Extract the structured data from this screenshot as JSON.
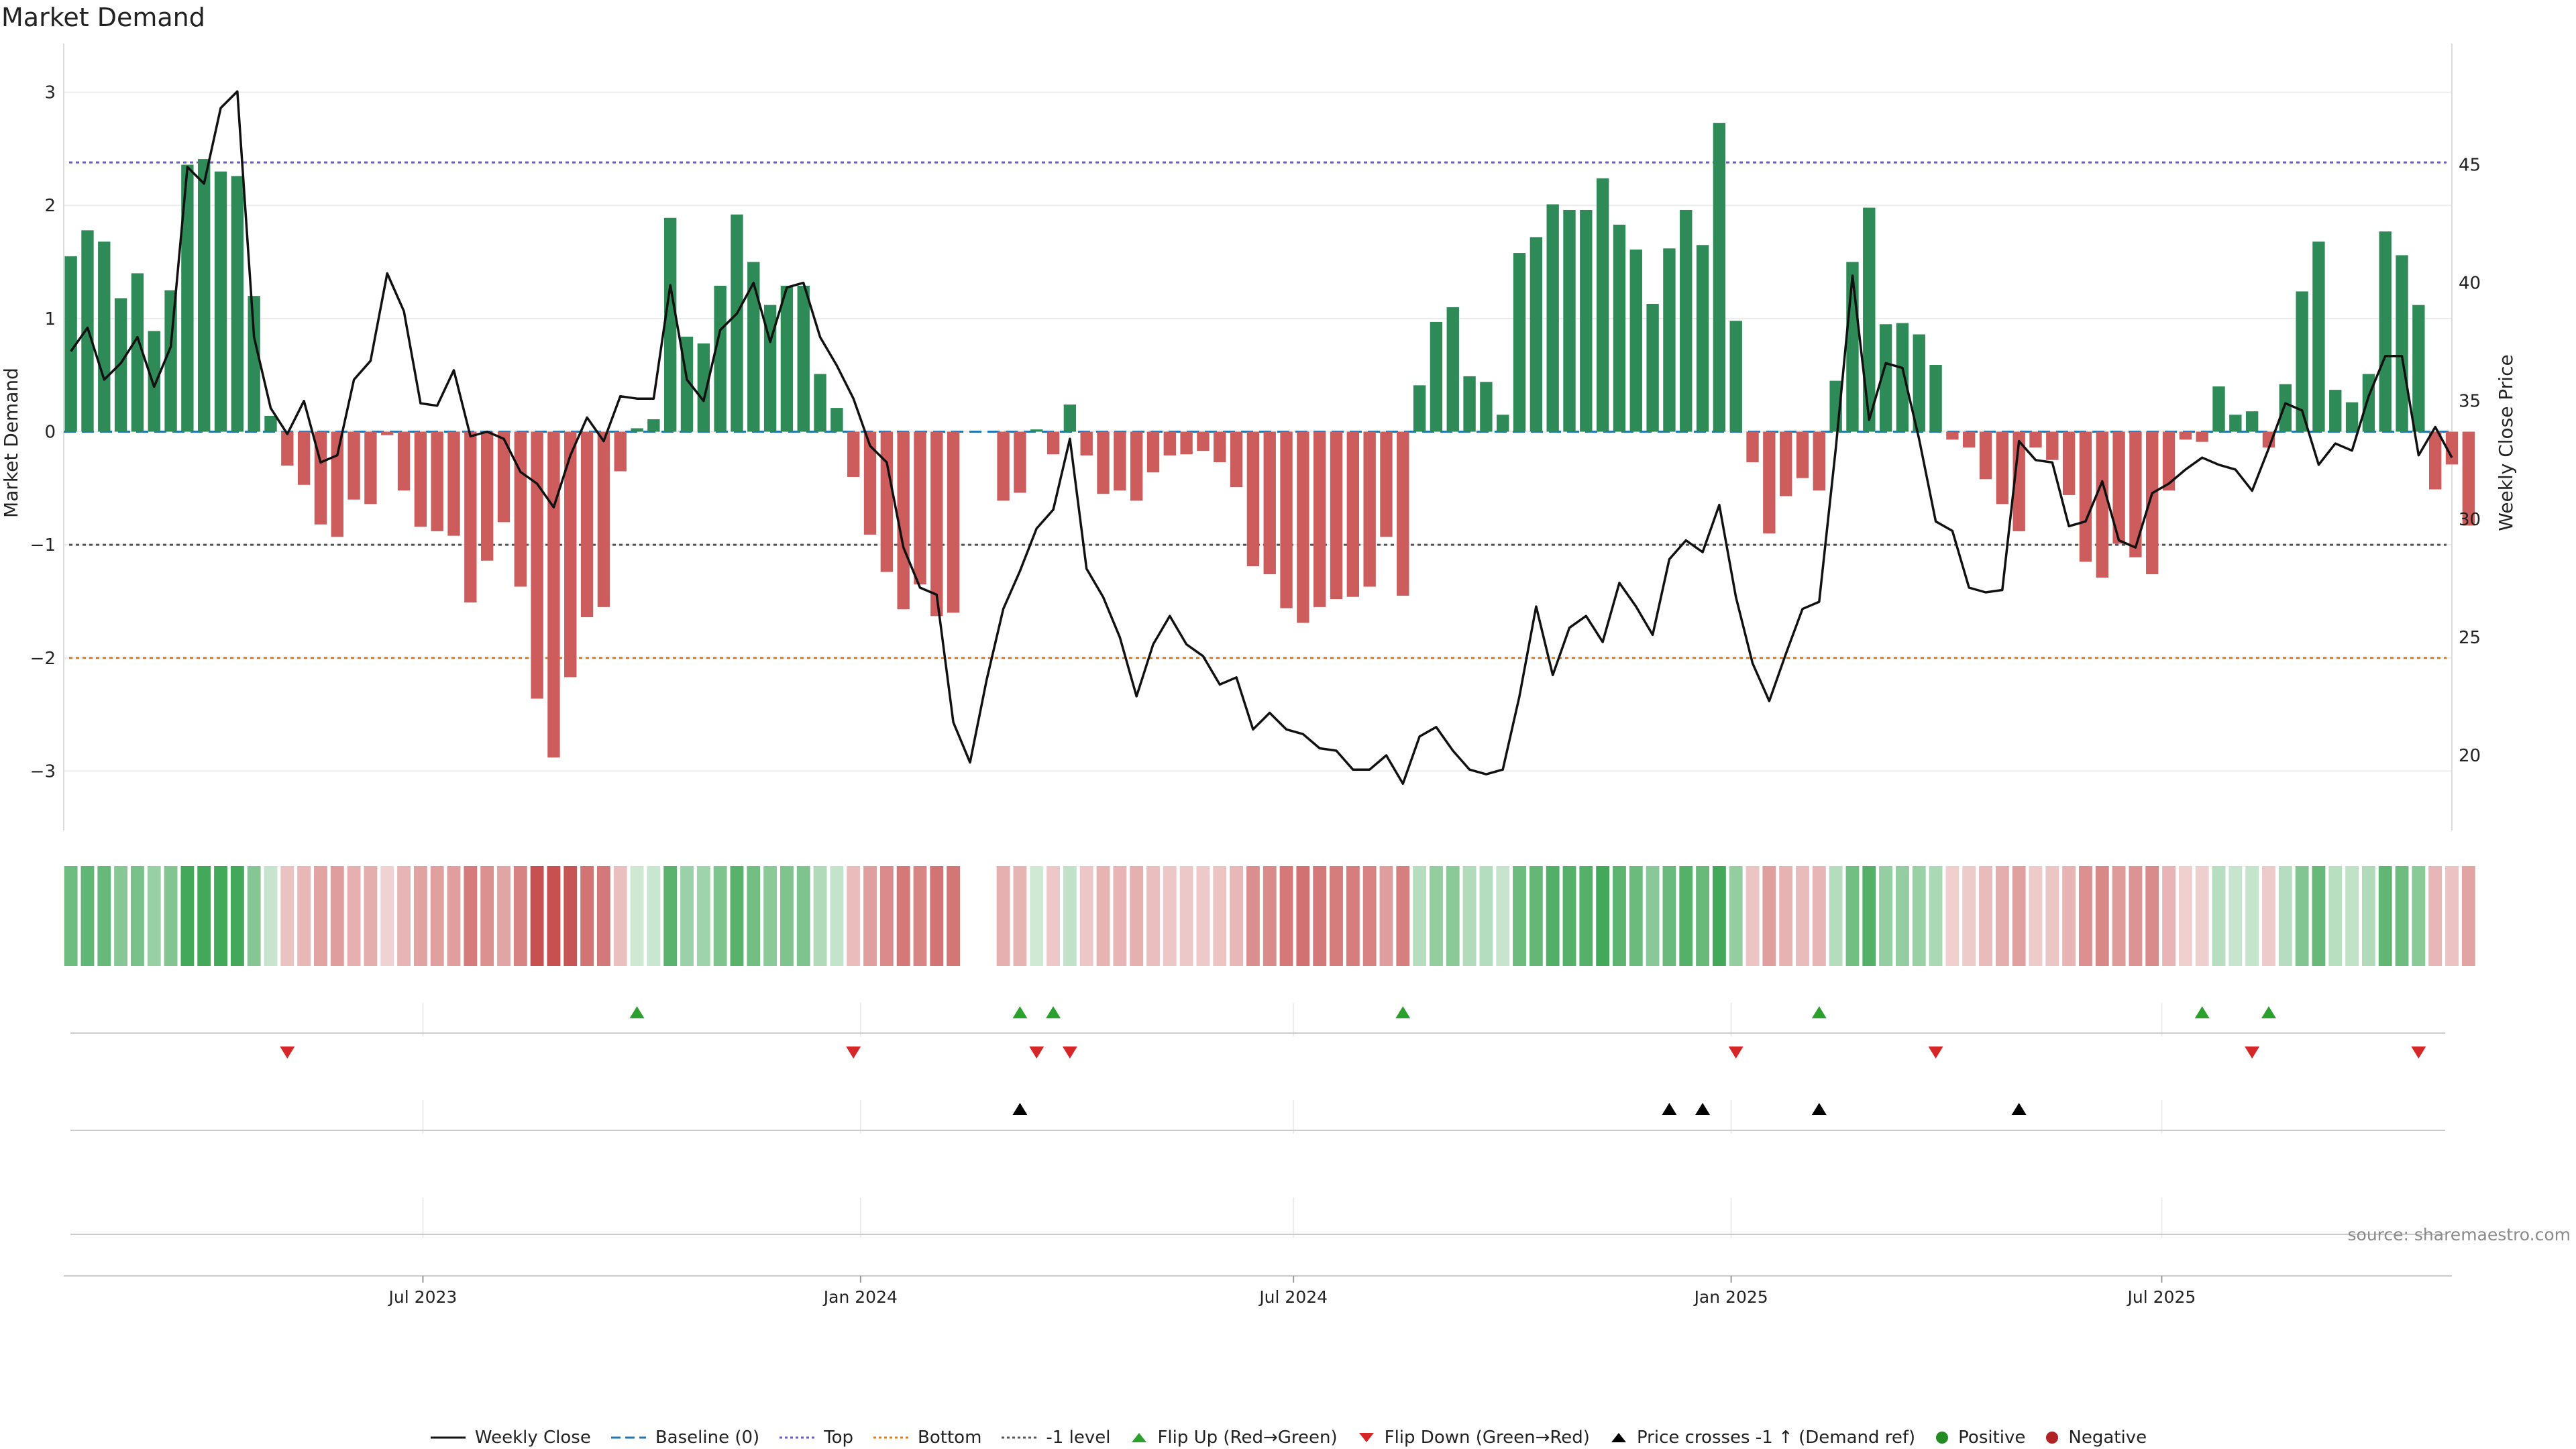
{
  "title": "Market Demand",
  "source": "source: sharemaestro.com",
  "colors": {
    "pos": "#2e8b57",
    "neg": "#cd5c5c",
    "close": "#111111",
    "top": "#6a5acd",
    "bottom": "#e07b14",
    "minus1": "#555555",
    "baseline": "#1f77b4",
    "flipUp": "#2ca02c",
    "flipDown": "#d62728",
    "cross": "#000000"
  },
  "legend": {
    "close": "Weekly Close",
    "baseline": "Baseline (0)",
    "top": "Top",
    "bottom": "Bottom",
    "minus1": "-1 level",
    "flipUp": "Flip Up (Red→Green)",
    "flipDown": "Flip Down (Green→Red)",
    "cross": "Price crosses -1 ↑ (Demand ref)",
    "positive": "Positive",
    "negative": "Negative"
  },
  "chart_data": {
    "type": "bar",
    "title": "Market Demand",
    "ylabel": "Market Demand",
    "y2label": "Weekly Close Price",
    "ylim": [
      -3.3,
      3.3
    ],
    "y2lim": [
      17.9,
      49.5
    ],
    "yticks": [
      3,
      2,
      1,
      0,
      -1,
      -2,
      -3
    ],
    "y2ticks": [
      45,
      40,
      35,
      30,
      25,
      20
    ],
    "levels": {
      "top": 2.38,
      "bottom": -2.0,
      "minus1": -1.0,
      "baseline": 0
    },
    "start_date": "2023-02-03",
    "x_range": [
      "2023-01-31",
      "2025-10-31"
    ],
    "xticks": [
      {
        "label": "Jul 2023",
        "date": "2023-07-01"
      },
      {
        "label": "Jan 2024",
        "date": "2024-01-01"
      },
      {
        "label": "Jul 2024",
        "date": "2024-07-01"
      },
      {
        "label": "Jan 2025",
        "date": "2025-01-01"
      },
      {
        "label": "Jul 2025",
        "date": "2025-07-01"
      }
    ],
    "demand": [
      1.55,
      1.78,
      1.68,
      1.18,
      1.4,
      0.89,
      1.25,
      2.36,
      2.41,
      2.3,
      2.26,
      1.2,
      0.14,
      -0.3,
      -0.47,
      -0.82,
      -0.93,
      -0.6,
      -0.64,
      -0.03,
      -0.52,
      -0.84,
      -0.88,
      -0.92,
      -1.51,
      -1.14,
      -0.8,
      -1.37,
      -2.36,
      -2.88,
      -2.17,
      -1.64,
      -1.55,
      -0.35,
      0.03,
      0.11,
      1.89,
      0.84,
      0.78,
      1.29,
      1.92,
      1.5,
      1.12,
      1.29,
      1.29,
      0.51,
      0.21,
      -0.4,
      -0.91,
      -1.24,
      -1.57,
      -1.35,
      -1.63,
      -1.6,
      0,
      0,
      -0.61,
      -0.54,
      0.02,
      -0.2,
      0.24,
      -0.21,
      -0.55,
      -0.52,
      -0.61,
      -0.36,
      -0.21,
      -0.2,
      -0.17,
      -0.27,
      -0.49,
      -1.19,
      -1.26,
      -1.56,
      -1.69,
      -1.55,
      -1.48,
      -1.46,
      -1.37,
      -0.93,
      -1.45,
      0.41,
      0.97,
      1.1,
      0.49,
      0.44,
      0.15,
      1.58,
      1.72,
      2.01,
      1.96,
      1.96,
      2.24,
      1.83,
      1.61,
      1.13,
      1.62,
      1.96,
      1.65,
      2.73,
      0.98,
      -0.27,
      -0.9,
      -0.57,
      -0.41,
      -0.52,
      0.45,
      1.5,
      1.98,
      0.95,
      0.96,
      0.86,
      0.59,
      -0.07,
      -0.14,
      -0.42,
      -0.64,
      -0.88,
      -0.14,
      -0.25,
      -0.56,
      -1.15,
      -1.29,
      -0.99,
      -1.11,
      -1.26,
      -0.52,
      -0.07,
      -0.09,
      0.4,
      0.15,
      0.18,
      -0.14,
      0.42,
      1.24,
      1.68,
      0.37,
      0.26,
      0.51,
      1.77,
      1.56,
      1.12,
      -0.51,
      -0.29,
      -0.83
    ],
    "close": [
      37.1,
      38.1,
      35.9,
      36.6,
      37.7,
      35.6,
      37.3,
      44.9,
      44.2,
      47.4,
      48.1,
      37.7,
      34.7,
      33.6,
      35.0,
      32.4,
      32.7,
      35.9,
      36.7,
      40.4,
      38.8,
      34.9,
      34.8,
      36.3,
      33.5,
      33.7,
      33.4,
      32.0,
      31.5,
      30.5,
      32.7,
      34.3,
      33.3,
      35.2,
      35.1,
      35.1,
      39.9,
      35.9,
      35.0,
      38.0,
      38.7,
      40.0,
      37.5,
      39.8,
      40.0,
      37.7,
      36.5,
      35.1,
      33.1,
      32.4,
      28.8,
      27.1,
      26.8,
      21.4,
      19.7,
      23.2,
      26.2,
      27.8,
      29.6,
      30.4,
      33.4,
      27.9,
      26.7,
      25.0,
      22.5,
      24.7,
      25.9,
      24.7,
      24.2,
      23.0,
      23.3,
      21.1,
      21.8,
      21.1,
      20.9,
      20.3,
      20.2,
      19.4,
      19.4,
      20.0,
      18.8,
      20.8,
      21.2,
      20.2,
      19.4,
      19.2,
      19.4,
      22.5,
      26.3,
      23.4,
      25.4,
      25.9,
      24.8,
      27.3,
      26.3,
      25.1,
      28.3,
      29.1,
      28.6,
      30.6,
      26.7,
      23.9,
      22.3,
      24.3,
      26.2,
      26.5,
      33.0,
      40.3,
      34.2,
      36.6,
      36.4,
      33.4,
      29.9,
      29.5,
      27.1,
      26.9,
      27.0,
      33.3,
      32.5,
      32.4,
      29.7,
      29.9,
      31.6,
      29.1,
      28.8,
      31.1,
      31.5,
      32.1,
      32.6,
      32.3,
      32.1,
      31.2,
      33.0,
      34.9,
      34.6,
      32.3,
      33.2,
      32.9,
      35.2,
      36.9,
      36.9,
      32.7,
      33.9,
      32.6
    ],
    "flip_up": [
      34,
      57,
      59,
      80,
      105,
      128,
      132
    ],
    "flip_down": [
      13,
      47,
      58,
      60,
      100,
      112,
      131,
      141
    ],
    "price_cross_up": [
      57,
      96,
      98,
      105,
      117
    ]
  }
}
